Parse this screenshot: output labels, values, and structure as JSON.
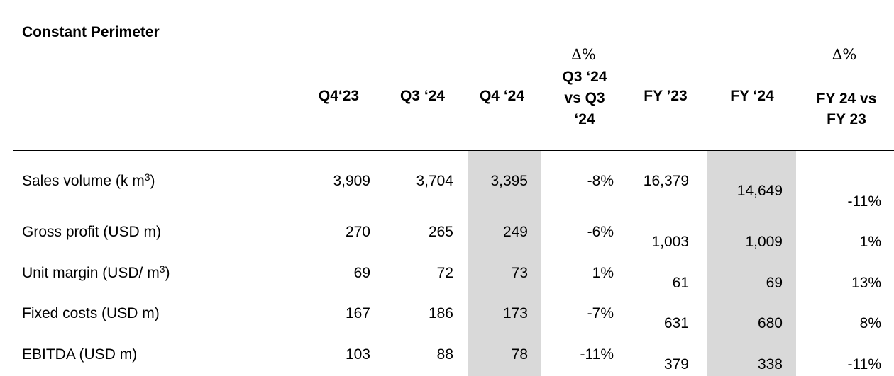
{
  "title": "Constant Perimeter",
  "headers": {
    "q4_23": "Q4‘23",
    "q3_24": "Q3 ‘24",
    "q4_24": "Q4 ‘24",
    "delta_q_symbol": "∆%",
    "delta_q_line1": "Q3 ‘24",
    "delta_q_line2": "vs Q3",
    "delta_q_line3": "‘24",
    "fy_23": "FY ’23",
    "fy_24": "FY ‘24",
    "delta_fy_symbol": "∆%",
    "delta_fy_line1": "FY 24 vs",
    "delta_fy_line2": "FY 23"
  },
  "rows": [
    {
      "label": "Sales volume (k m",
      "sup": "3",
      "suffix": ")",
      "q4_23": "3,909",
      "q3_24": "3,704",
      "q4_24": "3,395",
      "delta_q": "-8%",
      "fy_23": "16,379",
      "fy_24": "14,649",
      "delta_fy": "-11%"
    },
    {
      "label": "Gross profit (USD m)",
      "q4_23": "270",
      "q3_24": "265",
      "q4_24": "249",
      "delta_q": "-6%",
      "fy_23": "1,003",
      "fy_24": "1,009",
      "delta_fy": "1%"
    },
    {
      "label": "Unit margin (USD/ m",
      "sup": "3",
      "suffix": ")",
      "q4_23": "69",
      "q3_24": "72",
      "q4_24": "73",
      "delta_q": "1%",
      "fy_23": "61",
      "fy_24": "69",
      "delta_fy": "13%"
    },
    {
      "label": "Fixed costs (USD m)",
      "q4_23": "167",
      "q3_24": "186",
      "q4_24": "173",
      "delta_q": "-7%",
      "fy_23": "631",
      "fy_24": "680",
      "delta_fy": "8%"
    },
    {
      "label": "EBITDA (USD m)",
      "q4_23": "103",
      "q3_24": "88",
      "q4_24": "78",
      "delta_q": "-11%",
      "fy_23": "379",
      "fy_24": "338",
      "delta_fy": "-11%"
    }
  ]
}
